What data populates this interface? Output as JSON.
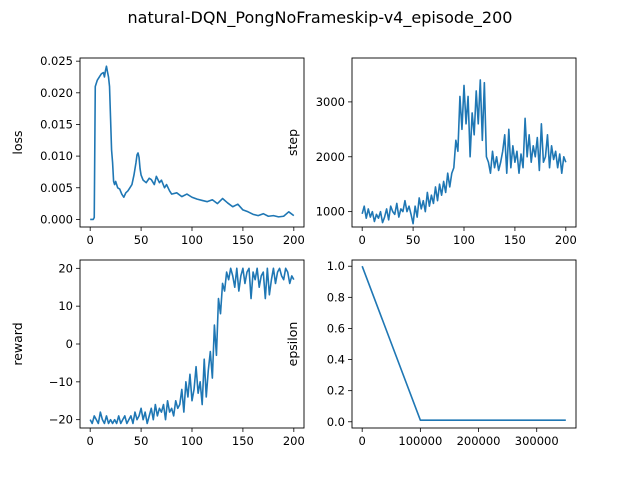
{
  "figure": {
    "suptitle": "natural-DQN_PongNoFrameskip-v4_episode_200",
    "line_color": "#1f77b4"
  },
  "chart_data": [
    {
      "type": "line",
      "ylabel": "loss",
      "xlabel": "",
      "xlim": [
        -10,
        210
      ],
      "ylim": [
        -0.0012,
        0.0255
      ],
      "xticks": [
        0,
        50,
        100,
        150,
        200
      ],
      "yticks": [
        0.0,
        0.005,
        0.01,
        0.015,
        0.02,
        0.025
      ],
      "ytick_labels": [
        "0.000",
        "0.005",
        "0.010",
        "0.015",
        "0.020",
        "0.025"
      ],
      "series": [
        {
          "x": [
            0,
            3,
            4,
            5,
            7,
            9,
            11,
            13,
            14,
            15,
            16,
            17,
            18,
            19,
            20,
            21,
            22,
            23,
            24,
            25,
            27,
            29,
            31,
            33,
            35,
            37,
            39,
            41,
            43,
            45,
            46,
            47,
            48,
            49,
            50,
            52,
            55,
            58,
            60,
            63,
            65,
            68,
            70,
            73,
            75,
            78,
            80,
            85,
            90,
            95,
            100,
            105,
            110,
            115,
            120,
            125,
            130,
            135,
            140,
            145,
            150,
            155,
            160,
            165,
            170,
            175,
            180,
            185,
            190,
            195,
            200
          ],
          "y": [
            0,
            0,
            0.0003,
            0.021,
            0.022,
            0.0225,
            0.023,
            0.0232,
            0.0225,
            0.0235,
            0.0242,
            0.0233,
            0.0225,
            0.021,
            0.016,
            0.011,
            0.009,
            0.006,
            0.0055,
            0.006,
            0.005,
            0.0048,
            0.004,
            0.0035,
            0.0042,
            0.0045,
            0.005,
            0.0055,
            0.007,
            0.009,
            0.0102,
            0.0105,
            0.0098,
            0.008,
            0.007,
            0.0062,
            0.0058,
            0.0065,
            0.0063,
            0.0055,
            0.0068,
            0.0058,
            0.0062,
            0.005,
            0.0055,
            0.0045,
            0.004,
            0.0042,
            0.0036,
            0.004,
            0.0035,
            0.0032,
            0.003,
            0.0028,
            0.0031,
            0.0025,
            0.0033,
            0.0026,
            0.002,
            0.0024,
            0.0015,
            0.0012,
            0.0008,
            0.0006,
            0.0009,
            0.0005,
            0.0006,
            0.0004,
            0.0005,
            0.0012,
            0.0006
          ]
        }
      ]
    },
    {
      "type": "line",
      "ylabel": "step",
      "xlabel": "",
      "xlim": [
        -10,
        210
      ],
      "ylim": [
        720,
        3800
      ],
      "xticks": [
        0,
        50,
        100,
        150,
        200
      ],
      "yticks": [
        1000,
        2000,
        3000
      ],
      "ytick_labels": [
        "1000",
        "2000",
        "3000"
      ],
      "series": [
        {
          "x": [
            0,
            2,
            4,
            6,
            8,
            10,
            12,
            14,
            16,
            18,
            20,
            22,
            24,
            26,
            28,
            30,
            32,
            34,
            36,
            38,
            40,
            42,
            44,
            46,
            48,
            50,
            52,
            54,
            56,
            58,
            60,
            62,
            64,
            66,
            68,
            70,
            72,
            74,
            76,
            78,
            80,
            82,
            84,
            86,
            88,
            90,
            92,
            94,
            96,
            98,
            100,
            102,
            104,
            106,
            108,
            110,
            112,
            114,
            116,
            118,
            120,
            122,
            124,
            126,
            128,
            130,
            132,
            134,
            136,
            138,
            140,
            142,
            144,
            146,
            148,
            150,
            152,
            154,
            156,
            158,
            160,
            162,
            164,
            166,
            168,
            170,
            172,
            174,
            176,
            178,
            180,
            182,
            184,
            186,
            188,
            190,
            192,
            194,
            196,
            198,
            200
          ],
          "y": [
            960,
            1100,
            880,
            1050,
            900,
            1000,
            820,
            950,
            880,
            1000,
            800,
            900,
            1050,
            850,
            1100,
            1000,
            950,
            1150,
            900,
            1050,
            1000,
            1200,
            1000,
            1100,
            950,
            780,
            1100,
            900,
            1250,
            1050,
            1200,
            1000,
            1350,
            1100,
            1300,
            1150,
            1450,
            1200,
            1500,
            1300,
            1550,
            1350,
            1700,
            1450,
            1700,
            1800,
            2300,
            2100,
            3100,
            2500,
            3300,
            2600,
            3100,
            2000,
            2800,
            2400,
            3200,
            2600,
            3400,
            2300,
            3350,
            2000,
            1900,
            1700,
            2100,
            1800,
            2000,
            1750,
            1900,
            2100,
            2400,
            1700,
            2500,
            1800,
            2200,
            1900,
            2100,
            1700,
            2050,
            1800,
            2700,
            2000,
            2400,
            1900,
            2200,
            2000,
            2350,
            1750,
            2600,
            1900,
            2000,
            2400,
            1800,
            2200,
            1950,
            2100,
            1800,
            2050,
            1700,
            2000,
            1900
          ]
        }
      ]
    },
    {
      "type": "line",
      "ylabel": "reward",
      "xlabel": "",
      "xlim": [
        -10,
        210
      ],
      "ylim": [
        -22.2,
        22.2
      ],
      "xticks": [
        0,
        50,
        100,
        150,
        200
      ],
      "yticks": [
        -20,
        -10,
        0,
        10,
        20
      ],
      "ytick_labels": [
        "−20",
        "−10",
        "0",
        "10",
        "20"
      ],
      "series": [
        {
          "x": [
            0,
            2,
            4,
            6,
            8,
            10,
            12,
            14,
            16,
            18,
            20,
            22,
            24,
            26,
            28,
            30,
            32,
            34,
            36,
            38,
            40,
            42,
            44,
            46,
            48,
            50,
            52,
            54,
            56,
            58,
            60,
            62,
            64,
            66,
            68,
            70,
            72,
            74,
            76,
            78,
            80,
            82,
            84,
            86,
            88,
            90,
            92,
            94,
            96,
            98,
            100,
            102,
            104,
            106,
            108,
            110,
            112,
            114,
            116,
            118,
            120,
            122,
            124,
            126,
            128,
            130,
            132,
            134,
            136,
            138,
            140,
            142,
            144,
            146,
            148,
            150,
            152,
            154,
            156,
            158,
            160,
            162,
            164,
            166,
            168,
            170,
            172,
            174,
            176,
            178,
            180,
            182,
            184,
            186,
            188,
            190,
            192,
            194,
            196,
            198,
            200
          ],
          "y": [
            -20,
            -21,
            -19,
            -20,
            -21,
            -18,
            -20,
            -21,
            -19,
            -21,
            -20,
            -21,
            -20,
            -21,
            -19,
            -21,
            -20,
            -19,
            -21,
            -20,
            -19,
            -21,
            -18,
            -20,
            -19,
            -17,
            -20,
            -18,
            -21,
            -19,
            -17,
            -20,
            -16,
            -19,
            -17,
            -18,
            -16,
            -20,
            -15,
            -18,
            -17,
            -19,
            -15,
            -17,
            -16,
            -12,
            -18,
            -10,
            -14,
            -8,
            -15,
            -12,
            -6,
            -13,
            -10,
            -16,
            -4,
            -14,
            -7,
            -2,
            -9,
            5,
            -3,
            12,
            8,
            16,
            14,
            19,
            17,
            20,
            18,
            15,
            20,
            14,
            18,
            20,
            16,
            19,
            20,
            12,
            19,
            17,
            20,
            15,
            18,
            19,
            12,
            20,
            13,
            17,
            20,
            16,
            19,
            20,
            18,
            17,
            20,
            19,
            16,
            18,
            17
          ]
        }
      ]
    },
    {
      "type": "line",
      "ylabel": "epsilon",
      "xlabel": "",
      "xlim": [
        -17500,
        367500
      ],
      "ylim": [
        -0.04,
        1.04
      ],
      "xticks": [
        0,
        100000,
        200000,
        300000
      ],
      "yticks": [
        0.0,
        0.2,
        0.4,
        0.6,
        0.8,
        1.0
      ],
      "ytick_labels": [
        "0.0",
        "0.2",
        "0.4",
        "0.6",
        "0.8",
        "1.0"
      ],
      "series": [
        {
          "x": [
            0,
            100000,
            350000
          ],
          "y": [
            1.0,
            0.01,
            0.01
          ]
        }
      ]
    }
  ]
}
